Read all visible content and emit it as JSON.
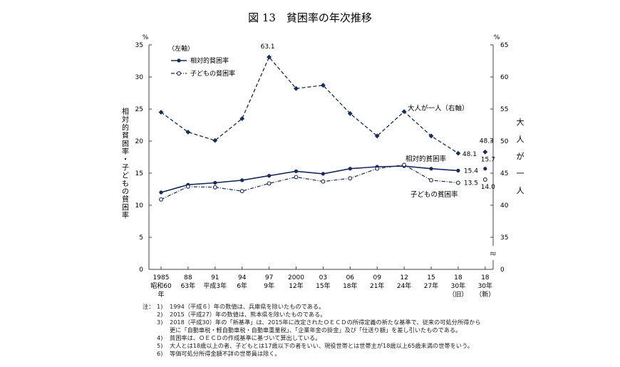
{
  "chart_data": {
    "type": "line",
    "title": "図 13　貧困率の年次推移",
    "left_axis": {
      "unit": "%",
      "label": "相対的貧困率・子どもの貧困率",
      "ticks": [
        0,
        5,
        10,
        15,
        20,
        25,
        30,
        35
      ],
      "range": [
        0,
        35
      ]
    },
    "right_axis": {
      "unit": "%",
      "label": "大人が一人",
      "ticks": [
        0,
        35,
        40,
        45,
        50,
        55,
        60,
        65
      ],
      "range_display": [
        30,
        65
      ],
      "break_symbol": "≈"
    },
    "legend": {
      "note": "（左軸）",
      "items": [
        "相対的貧困率",
        "子どもの貧困率"
      ]
    },
    "categories": [
      {
        "top": "1985",
        "mid": "昭和60",
        "bottom": "年"
      },
      {
        "top": "88",
        "mid": "63年",
        "bottom": ""
      },
      {
        "top": "91",
        "mid": "平成3年",
        "bottom": ""
      },
      {
        "top": "94",
        "mid": "6年",
        "bottom": ""
      },
      {
        "top": "97",
        "mid": "9年",
        "bottom": ""
      },
      {
        "top": "2000",
        "mid": "12年",
        "bottom": ""
      },
      {
        "top": "03",
        "mid": "15年",
        "bottom": ""
      },
      {
        "top": "06",
        "mid": "18年",
        "bottom": ""
      },
      {
        "top": "09",
        "mid": "21年",
        "bottom": ""
      },
      {
        "top": "12",
        "mid": "24年",
        "bottom": ""
      },
      {
        "top": "15",
        "mid": "27年",
        "bottom": ""
      },
      {
        "top": "18",
        "mid": "30年",
        "bottom": "（旧）"
      },
      {
        "top": "18",
        "mid": "30年",
        "bottom": "（新）"
      }
    ],
    "series": [
      {
        "name": "相対的貧困率",
        "axis": "left",
        "style": "solid-filled-circle",
        "values": [
          12.0,
          13.2,
          13.5,
          13.9,
          14.6,
          15.3,
          14.9,
          15.7,
          16.0,
          16.1,
          15.7,
          15.4,
          15.7
        ],
        "label": "相対的貧困率",
        "value_labels": {
          "11": "15.4",
          "12": "15.7"
        }
      },
      {
        "name": "子どもの貧困率",
        "axis": "left",
        "style": "dashdot-open-circle",
        "values": [
          10.9,
          12.9,
          12.8,
          12.2,
          13.4,
          14.4,
          13.7,
          14.2,
          15.7,
          16.3,
          13.9,
          13.5,
          14.0
        ],
        "label": "子どもの貧困率",
        "value_labels": {
          "11": "13.5",
          "12": "14.0"
        }
      },
      {
        "name": "大人が一人",
        "axis": "right",
        "style": "dashed-diamond",
        "values": [
          54.5,
          51.4,
          50.1,
          53.5,
          63.1,
          58.2,
          58.7,
          54.3,
          50.8,
          54.6,
          50.8,
          48.1,
          48.3
        ],
        "label": "大人が一人（右軸）",
        "value_labels": {
          "4": "63.1",
          "11": "48.1",
          "12": "48.3"
        }
      }
    ]
  },
  "notes": [
    {
      "lead": "注：",
      "num": "1)",
      "text": "1994（平成６）年の数値は、兵庫県を除いたものである。"
    },
    {
      "lead": "",
      "num": "2)",
      "text": "2015（平成27）年の数値は、熊本県を除いたものである。"
    },
    {
      "lead": "",
      "num": "3)",
      "text": "2018（平成30）年の「新基準」は、2015年に改定されたＯＥＣＤの所得定義の新たな基準で、従来の可処分所得から"
    },
    {
      "lead": "",
      "num": "",
      "text": "更に「自動車税・軽自動車税・自動車重量税」、「企業年金の掛金」及び「仕送り額」を差し引いたものである。"
    },
    {
      "lead": "",
      "num": "4)",
      "text": "貧困率は、ＯＥＣＤの作成基準に基づいて算出している。"
    },
    {
      "lead": "",
      "num": "5)",
      "text": "大人とは18歳以上の者、子どもとは17歳以下の者をいい、現役世帯とは世帯主が18歳以上65歳未満の世帯をいう。"
    },
    {
      "lead": "",
      "num": "6)",
      "text": "等価可処分所得金額不詳の世帯員は除く。"
    }
  ]
}
